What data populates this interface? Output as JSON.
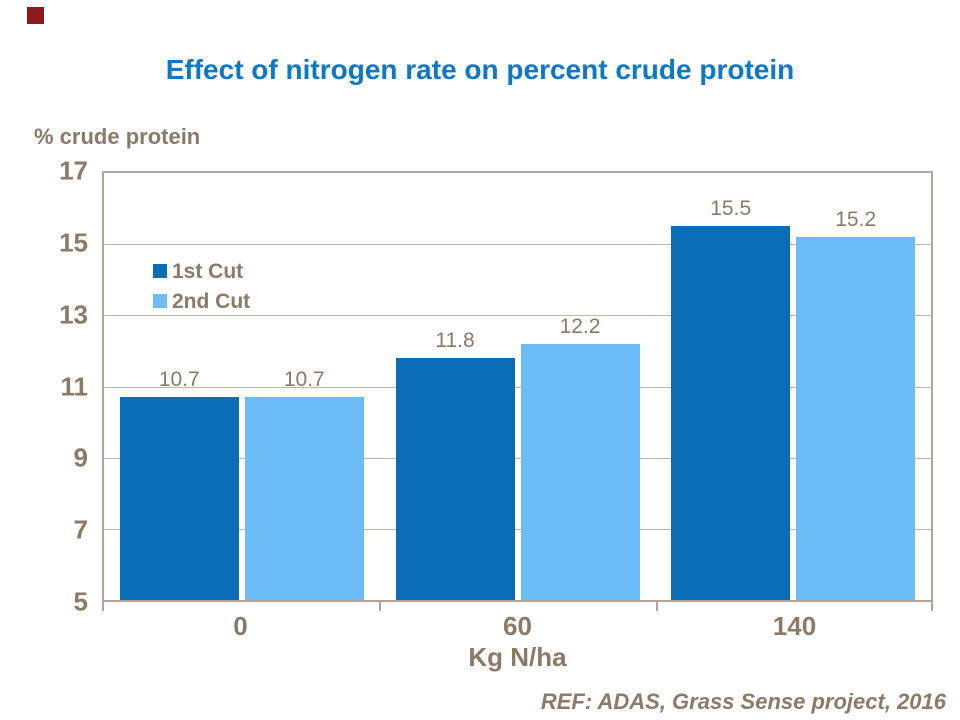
{
  "page": {
    "footer_ref": "REF: ADAS, Grass Sense project, 2016"
  },
  "chart_data": {
    "type": "bar",
    "title": "Effect of nitrogen rate on percent crude protein",
    "y_axis_title": "% crude protein",
    "xlabel": "Kg N/ha",
    "ylabel": "% crude protein",
    "ylim": [
      5,
      17
    ],
    "y_ticks": [
      17,
      15,
      13,
      11,
      9,
      7,
      5
    ],
    "grid": true,
    "legend_position": "inside-top-left",
    "categories": [
      "0",
      "60",
      "140"
    ],
    "series": [
      {
        "name": "1st Cut",
        "color": "#0a6db6",
        "values": [
          10.7,
          11.8,
          15.5
        ]
      },
      {
        "name": "2nd Cut",
        "color": "#6cbdf6",
        "values": [
          10.7,
          12.2,
          15.2
        ]
      }
    ],
    "data_labels": [
      [
        "10.7",
        "10.7"
      ],
      [
        "11.8",
        "12.2"
      ],
      [
        "15.5",
        "15.2"
      ]
    ]
  },
  "colors": {
    "title_blue": "#0d78c8",
    "series_1st_cut": "#0a6db6",
    "series_2nd_cut": "#6cbdf6",
    "axis_text": "#8a7a66",
    "gridline": "#c1b6a6",
    "frame": "#b0a598",
    "corner_marker": "#8c1a1c",
    "background": "#ffffff"
  }
}
